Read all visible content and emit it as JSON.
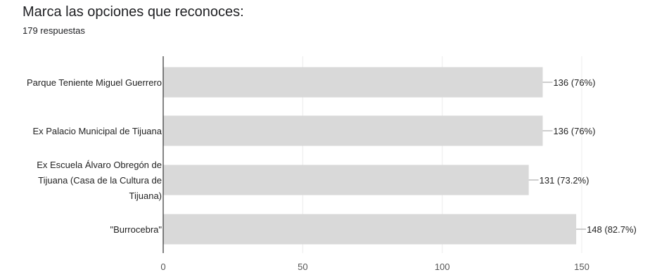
{
  "question": {
    "title": "Marca las opciones que reconoces:",
    "responses": "179 respuestas"
  },
  "colors": {
    "bar": "#d9d9d9",
    "axis": "#333333",
    "grid": "#ececec",
    "text": "#222222"
  },
  "chart_data": {
    "type": "bar",
    "orientation": "horizontal",
    "title": "Marca las opciones que reconoces:",
    "subtitle": "179 respuestas",
    "categories": [
      [
        "Parque Teniente Miguel Guerrero"
      ],
      [
        "Ex Palacio Municipal de Tijuana"
      ],
      [
        "Ex Escuela Álvaro Obregón de",
        "Tijuana (Casa de la Cultura de",
        "Tijuana)"
      ],
      [
        "\"Burrocebra\""
      ]
    ],
    "values": [
      136,
      136,
      131,
      148
    ],
    "data_labels": [
      "136 (76%)",
      "136 (76%)",
      "131 (73.2%)",
      "148 (82.7%)"
    ],
    "xticks": [
      0,
      50,
      100,
      150
    ],
    "xtick_labels": [
      "0",
      "50",
      "100",
      "150"
    ],
    "xlim": [
      0,
      150
    ],
    "grid": true
  }
}
